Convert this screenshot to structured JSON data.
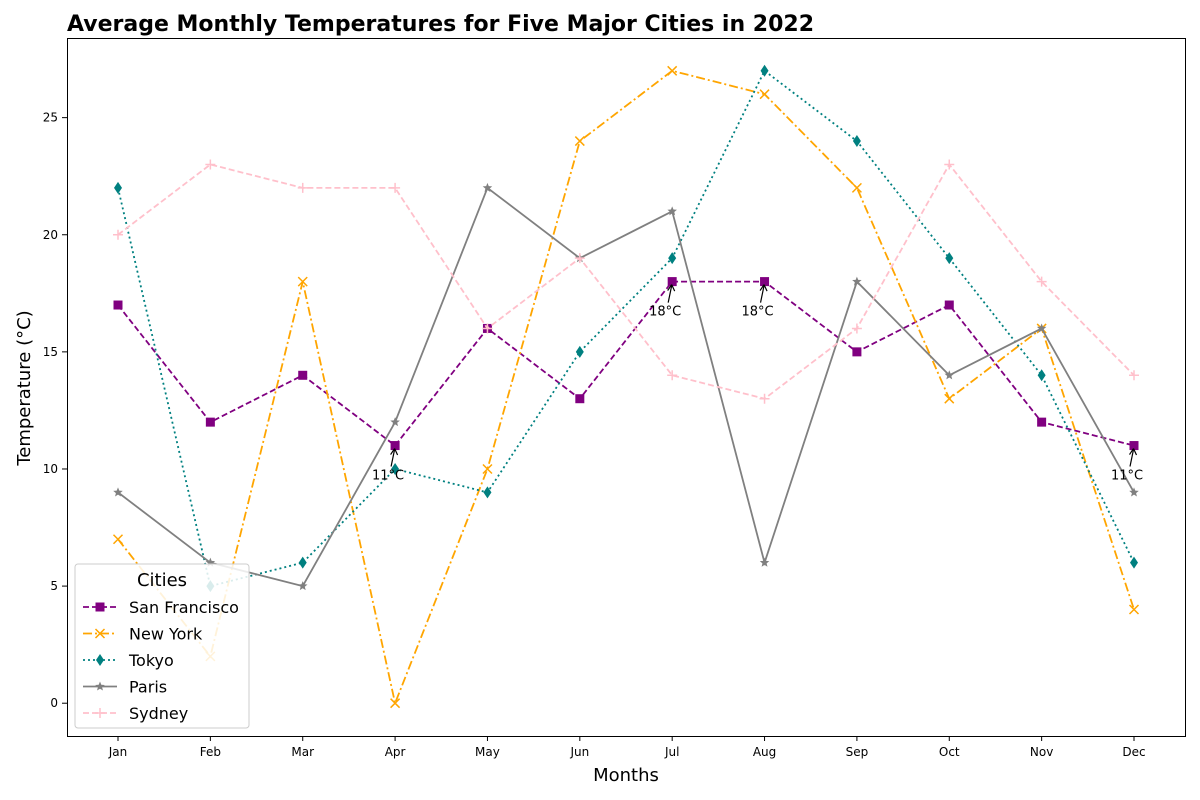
{
  "chart_data": {
    "type": "line",
    "title": "Average Monthly Temperatures for Five Major Cities in 2022",
    "xlabel": "Months",
    "ylabel": "Temperature (°C)",
    "categories": [
      "Jan",
      "Feb",
      "Mar",
      "Apr",
      "May",
      "Jun",
      "Jul",
      "Aug",
      "Sep",
      "Oct",
      "Nov",
      "Dec"
    ],
    "ylim": [
      -1.4,
      28.4
    ],
    "yticks": [
      0,
      5,
      10,
      15,
      20,
      25
    ],
    "grid": false,
    "legend": {
      "title": "Cities",
      "placement": "lower-left"
    },
    "series": [
      {
        "name": "San Francisco",
        "color": "#800080",
        "dash": "dashed",
        "marker": "square",
        "values": [
          17,
          12,
          14,
          11,
          16,
          13,
          18,
          18,
          15,
          17,
          12,
          11
        ]
      },
      {
        "name": "New York",
        "color": "#FFA500",
        "dash": "dashdot",
        "marker": "x",
        "values": [
          7,
          2,
          18,
          0,
          10,
          24,
          27,
          26,
          22,
          13,
          16,
          4
        ]
      },
      {
        "name": "Tokyo",
        "color": "#008080",
        "dash": "dotted",
        "marker": "diamond",
        "values": [
          22,
          5,
          6,
          10,
          9,
          15,
          19,
          27,
          24,
          19,
          14,
          6
        ]
      },
      {
        "name": "Paris",
        "color": "#808080",
        "dash": "solid",
        "marker": "star",
        "values": [
          9,
          6,
          5,
          12,
          22,
          19,
          21,
          6,
          18,
          14,
          16,
          9
        ]
      },
      {
        "name": "Sydney",
        "color": "#FFC0CB",
        "dash": "dashed",
        "marker": "plus",
        "values": [
          20,
          23,
          22,
          22,
          16,
          19,
          14,
          13,
          16,
          23,
          18,
          14
        ]
      }
    ],
    "annotations": [
      {
        "text": "11°C",
        "category": "Apr",
        "value": 11
      },
      {
        "text": "18°C",
        "category": "Jul",
        "value": 18
      },
      {
        "text": "18°C",
        "category": "Aug",
        "value": 18
      },
      {
        "text": "11°C",
        "category": "Dec",
        "value": 11
      }
    ]
  }
}
